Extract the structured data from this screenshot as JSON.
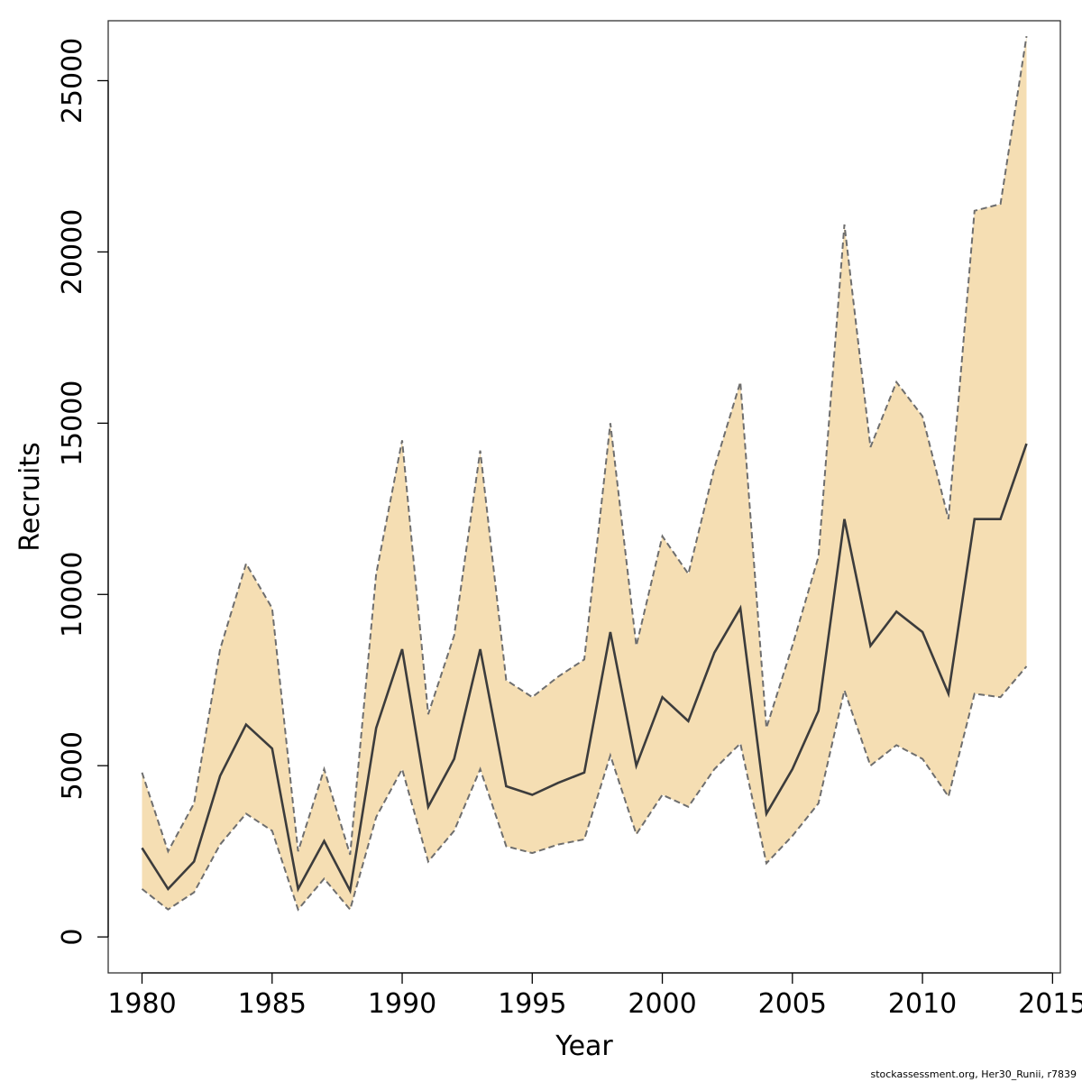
{
  "chart_data": {
    "type": "line",
    "title": "",
    "xlabel": "Year",
    "ylabel": "Recruits",
    "xlim": [
      1978.7,
      2015.3
    ],
    "ylim": [
      -1050,
      26750
    ],
    "x_ticks": [
      1980,
      1985,
      1990,
      1995,
      2000,
      2005,
      2010,
      2015
    ],
    "y_ticks": [
      0,
      5000,
      10000,
      15000,
      20000,
      25000
    ],
    "grid": false,
    "legend": "none",
    "x": [
      1980,
      1981,
      1982,
      1983,
      1984,
      1985,
      1986,
      1987,
      1988,
      1989,
      1990,
      1991,
      1992,
      1993,
      1994,
      1995,
      1996,
      1997,
      1998,
      1999,
      2000,
      2001,
      2002,
      2003,
      2004,
      2005,
      2006,
      2007,
      2008,
      2009,
      2010,
      2011,
      2012,
      2013,
      2014
    ],
    "series": [
      {
        "role": "estimate",
        "values": [
          2600,
          1400,
          2200,
          4700,
          6200,
          5500,
          1400,
          2800,
          1350,
          6100,
          8400,
          3800,
          5200,
          8400,
          4400,
          4150,
          4500,
          4800,
          8900,
          5000,
          7000,
          6300,
          8300,
          9600,
          3600,
          4900,
          6600,
          12200,
          8500,
          9500,
          8900,
          7100,
          12200,
          12200,
          14400
        ]
      },
      {
        "role": "upper bound",
        "values": [
          4800,
          2500,
          3900,
          8400,
          10900,
          9600,
          2500,
          4900,
          2400,
          10600,
          14500,
          6500,
          8800,
          14200,
          7500,
          7000,
          7600,
          8100,
          15000,
          8500,
          11700,
          10600,
          13700,
          16200,
          6100,
          8500,
          11100,
          20800,
          14300,
          16200,
          15200,
          12200,
          21200,
          21400,
          26300
        ]
      },
      {
        "role": "lower bound",
        "values": [
          1400,
          800,
          1300,
          2700,
          3600,
          3100,
          800,
          1700,
          800,
          3500,
          4900,
          2200,
          3100,
          4900,
          2650,
          2450,
          2700,
          2850,
          5300,
          3000,
          4150,
          3800,
          4900,
          5650,
          2150,
          2950,
          3900,
          7200,
          5000,
          5600,
          5200,
          4100,
          7100,
          7000,
          7900
        ]
      }
    ],
    "colors": {
      "band_fill": "#f5deb3",
      "band_edge": "#6e6e6e",
      "estimate_line": "#3c3c3c",
      "axis": "#000000"
    }
  },
  "footer": {
    "caption": "stockassessment.org, Her30_Runii, r7839"
  }
}
